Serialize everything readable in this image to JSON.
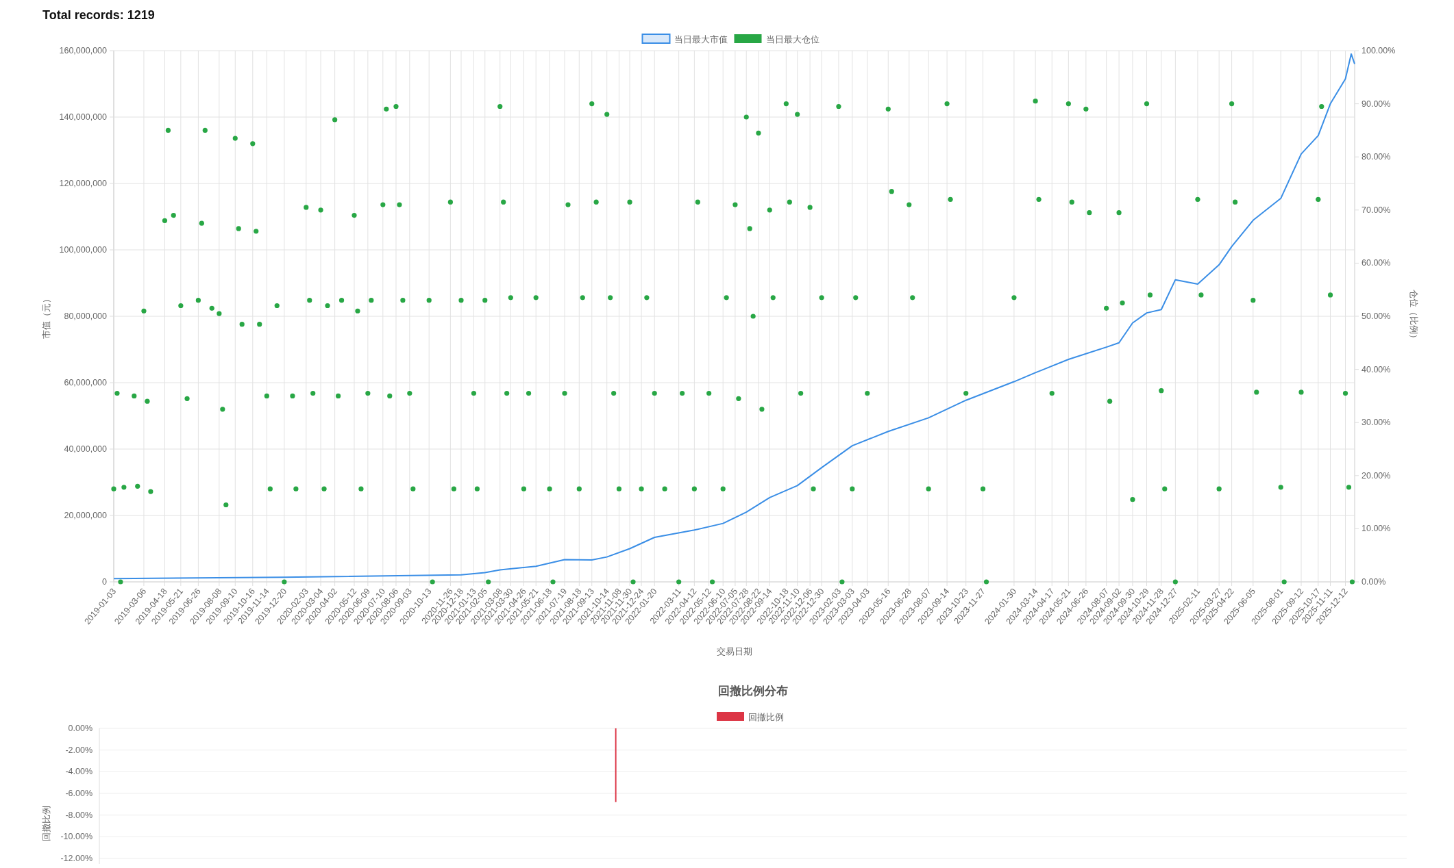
{
  "chart_data": [
    {
      "type": "line",
      "title": "Total records: 1219",
      "xlabel": "交易日期",
      "ylabel": "市值（元）",
      "y2label": "仓位（比例）",
      "legend": "top",
      "grid": true,
      "xlim": [
        "2019-01-03",
        "2025-12-31"
      ],
      "xticks": [
        "2019-01-03",
        "2019-03-06",
        "2019-04-18",
        "2019-05-21",
        "2019-06-26",
        "2019-08-08",
        "2019-09-10",
        "2019-10-16",
        "2019-11-14",
        "2019-12-20",
        "2020-02-03",
        "2020-03-04",
        "2020-04-02",
        "2020-05-12",
        "2020-06-09",
        "2020-07-10",
        "2020-08-06",
        "2020-09-03",
        "2020-10-13",
        "2020-11-26",
        "2020-12-18",
        "2021-01-13",
        "2021-02-05",
        "2021-03-08",
        "2021-03-30",
        "2021-04-26",
        "2021-05-21",
        "2021-06-18",
        "2021-07-19",
        "2021-08-18",
        "2021-09-13",
        "2021-10-14",
        "2021-11-08",
        "2021-11-30",
        "2021-12-24",
        "2022-01-20",
        "2022-03-11",
        "2022-04-12",
        "2022-05-12",
        "2022-06-10",
        "2022-07-05",
        "2022-07-28",
        "2022-08-22",
        "2022-09-14",
        "2022-10-18",
        "2022-11-10",
        "2022-12-06",
        "2022-12-30",
        "2023-02-03",
        "2023-03-03",
        "2023-04-03",
        "2023-05-16",
        "2023-06-28",
        "2023-08-07",
        "2023-09-14",
        "2023-10-23",
        "2023-11-27",
        "2024-01-30",
        "2024-03-14",
        "2024-04-17",
        "2024-05-21",
        "2024-06-26",
        "2024-08-07",
        "2024-09-02",
        "2024-09-30",
        "2024-10-29",
        "2024-11-28",
        "2024-12-27",
        "2025-02-11",
        "2025-03-27",
        "2025-04-22",
        "2025-06-05",
        "2025-08-01",
        "2025-09-12",
        "2025-10-17",
        "2025-11-11",
        "2025-12-12"
      ],
      "ylim": [
        0,
        160000000
      ],
      "yticks": [
        {
          "value": 0,
          "label": "0"
        },
        {
          "value": 20000000,
          "label": "20,000,000"
        },
        {
          "value": 40000000,
          "label": "40,000,000"
        },
        {
          "value": 60000000,
          "label": "60,000,000"
        },
        {
          "value": 80000000,
          "label": "80,000,000"
        },
        {
          "value": 100000000,
          "label": "100,000,000"
        },
        {
          "value": 120000000,
          "label": "120,000,000"
        },
        {
          "value": 140000000,
          "label": "140,000,000"
        },
        {
          "value": 160000000,
          "label": "160,000,000"
        }
      ],
      "y2lim": [
        0,
        100
      ],
      "y2ticks": [
        {
          "value": 0,
          "label": "0.00%"
        },
        {
          "value": 10,
          "label": "10.00%"
        },
        {
          "value": 20,
          "label": "20.00%"
        },
        {
          "value": 30,
          "label": "30.00%"
        },
        {
          "value": 40,
          "label": "40.00%"
        },
        {
          "value": 50,
          "label": "50.00%"
        },
        {
          "value": 60,
          "label": "60.00%"
        },
        {
          "value": 70,
          "label": "70.00%"
        },
        {
          "value": 80,
          "label": "80.00%"
        },
        {
          "value": 90,
          "label": "90.00%"
        },
        {
          "value": 100,
          "label": "100.00%"
        }
      ],
      "series": [
        {
          "name": "当日最大市值",
          "type": "line",
          "color": "#3a8ee6",
          "marker": "none",
          "x": [
            "2019-01-03",
            "2019-12-20",
            "2020-12-18",
            "2021-02-05",
            "2021-03-08",
            "2021-05-21",
            "2021-07-19",
            "2021-09-13",
            "2021-10-14",
            "2021-11-30",
            "2022-01-20",
            "2022-04-12",
            "2022-06-10",
            "2022-07-28",
            "2022-09-14",
            "2022-11-10",
            "2022-12-30",
            "2023-03-03",
            "2023-05-16",
            "2023-08-07",
            "2023-10-23",
            "2024-01-30",
            "2024-03-14",
            "2024-05-21",
            "2024-08-07",
            "2024-09-02",
            "2024-09-30",
            "2024-10-29",
            "2024-11-28",
            "2024-12-27",
            "2025-02-11",
            "2025-03-27",
            "2025-04-22",
            "2025-06-05",
            "2025-08-01",
            "2025-09-12",
            "2025-10-17",
            "2025-11-11",
            "2025-12-12",
            "2025-12-24",
            "2025-12-31"
          ],
          "values": [
            1000000,
            1400000,
            2100000,
            2800000,
            3600000,
            4700000,
            6700000,
            6600000,
            7500000,
            10000000,
            13400000,
            15600000,
            17600000,
            21000000,
            25400000,
            29000000,
            34400000,
            41000000,
            45300000,
            49400000,
            54700000,
            60300000,
            63000000,
            67000000,
            70700000,
            72000000,
            78000000,
            81000000,
            82000000,
            91000000,
            89700000,
            95500000,
            101000000,
            108900000,
            115500000,
            128900000,
            134400000,
            144000000,
            151500000,
            159000000,
            156000000
          ]
        },
        {
          "name": "当日最大仓位",
          "type": "scatter",
          "axis": "y2",
          "color": "#28a745",
          "marker": "circle",
          "x": [
            "2019-01-03",
            "2019-01-10",
            "2019-01-17",
            "2019-01-24",
            "2019-02-14",
            "2019-02-21",
            "2019-03-06",
            "2019-03-13",
            "2019-03-20",
            "2019-04-18",
            "2019-04-25",
            "2019-05-06",
            "2019-05-21",
            "2019-06-03",
            "2019-06-26",
            "2019-07-03",
            "2019-07-10",
            "2019-07-24",
            "2019-08-08",
            "2019-08-15",
            "2019-08-22",
            "2019-09-10",
            "2019-09-17",
            "2019-09-24",
            "2019-10-16",
            "2019-10-23",
            "2019-10-30",
            "2019-11-14",
            "2019-11-21",
            "2019-12-05",
            "2019-12-20",
            "2020-01-06",
            "2020-01-13",
            "2020-02-03",
            "2020-02-10",
            "2020-02-17",
            "2020-03-04",
            "2020-03-11",
            "2020-03-18",
            "2020-04-02",
            "2020-04-09",
            "2020-04-16",
            "2020-05-12",
            "2020-05-19",
            "2020-05-26",
            "2020-06-09",
            "2020-06-16",
            "2020-07-10",
            "2020-07-17",
            "2020-07-24",
            "2020-08-06",
            "2020-08-13",
            "2020-08-20",
            "2020-09-03",
            "2020-09-10",
            "2020-10-13",
            "2020-10-20",
            "2020-11-26",
            "2020-12-03",
            "2020-12-18",
            "2021-01-13",
            "2021-01-20",
            "2021-02-05",
            "2021-02-12",
            "2021-03-08",
            "2021-03-15",
            "2021-03-22",
            "2021-03-30",
            "2021-04-26",
            "2021-05-06",
            "2021-05-21",
            "2021-06-18",
            "2021-06-25",
            "2021-07-19",
            "2021-07-26",
            "2021-08-18",
            "2021-08-25",
            "2021-09-13",
            "2021-09-22",
            "2021-10-14",
            "2021-10-21",
            "2021-10-28",
            "2021-11-08",
            "2021-11-30",
            "2021-12-07",
            "2021-12-24",
            "2022-01-04",
            "2022-01-20",
            "2022-02-10",
            "2022-03-11",
            "2022-03-18",
            "2022-04-12",
            "2022-04-19",
            "2022-05-12",
            "2022-05-19",
            "2022-06-10",
            "2022-06-17",
            "2022-07-05",
            "2022-07-12",
            "2022-07-28",
            "2022-08-04",
            "2022-08-11",
            "2022-08-22",
            "2022-08-29",
            "2022-09-14",
            "2022-09-21",
            "2022-10-18",
            "2022-10-25",
            "2022-11-10",
            "2022-11-17",
            "2022-12-06",
            "2022-12-13",
            "2022-12-30",
            "2023-02-03",
            "2023-02-10",
            "2023-03-03",
            "2023-03-10",
            "2023-04-03",
            "2023-05-16",
            "2023-05-23",
            "2023-06-28",
            "2023-07-05",
            "2023-08-07",
            "2023-09-14",
            "2023-09-21",
            "2023-10-23",
            "2023-11-27",
            "2023-12-04",
            "2024-01-30",
            "2024-03-14",
            "2024-03-21",
            "2024-04-17",
            "2024-05-21",
            "2024-05-28",
            "2024-06-26",
            "2024-07-03",
            "2024-08-07",
            "2024-08-14",
            "2024-09-02",
            "2024-09-09",
            "2024-09-30",
            "2024-10-29",
            "2024-11-05",
            "2024-11-28",
            "2024-12-05",
            "2024-12-27",
            "2025-02-11",
            "2025-02-18",
            "2025-03-27",
            "2025-04-22",
            "2025-04-29",
            "2025-06-05",
            "2025-06-12",
            "2025-08-01",
            "2025-08-08",
            "2025-09-12",
            "2025-10-17",
            "2025-10-24",
            "2025-11-11",
            "2025-12-12",
            "2025-12-19",
            "2025-12-26"
          ],
          "values": [
            17.5,
            35.5,
            0,
            17.8,
            35,
            18,
            51,
            34,
            17,
            68,
            85,
            69,
            52,
            34.5,
            53,
            67.5,
            85,
            51.5,
            50.5,
            32.5,
            14.5,
            83.5,
            66.5,
            48.5,
            82.5,
            66,
            48.5,
            35,
            17.5,
            52,
            0,
            35,
            17.5,
            70.5,
            53,
            35.5,
            70,
            17.5,
            52,
            87,
            35,
            53,
            69,
            51,
            17.5,
            35.5,
            53,
            71,
            89,
            35,
            89.5,
            71,
            53,
            35.5,
            17.5,
            53,
            0,
            71.5,
            17.5,
            53,
            35.5,
            17.5,
            53,
            0,
            89.5,
            71.5,
            35.5,
            53.5,
            17.5,
            35.5,
            53.5,
            17.5,
            0,
            35.5,
            71,
            17.5,
            53.5,
            90,
            71.5,
            88,
            53.5,
            35.5,
            17.5,
            71.5,
            0,
            17.5,
            53.5,
            35.5,
            17.5,
            0,
            35.5,
            17.5,
            71.5,
            35.5,
            0,
            17.5,
            53.5,
            71,
            34.5,
            87.5,
            66.5,
            50,
            84.5,
            32.5,
            70,
            53.5,
            90,
            71.5,
            88,
            35.5,
            70.5,
            17.5,
            53.5,
            89.5,
            0,
            17.5,
            53.5,
            35.5,
            89,
            73.5,
            71,
            53.5,
            17.5,
            90,
            72,
            35.5,
            17.5,
            0,
            53.5,
            90.5,
            72,
            35.5,
            90,
            71.5,
            89,
            69.5,
            51.5,
            34,
            69.5,
            52.5,
            15.5,
            90,
            54,
            36,
            17.5,
            0,
            72,
            54,
            17.5,
            90,
            71.5,
            53,
            35.7,
            17.8,
            0,
            35.7,
            72,
            89.5,
            54,
            35.5,
            17.8,
            0
          ]
        }
      ]
    },
    {
      "type": "bar",
      "title": "回撤比例分布",
      "ylabel": "回撤比例",
      "legend": "top",
      "grid": "y",
      "categories": [
        null,
        null,
        null,
        null,
        null,
        null,
        null,
        null,
        null,
        null,
        null,
        null,
        null,
        null,
        null,
        null,
        null,
        null,
        null,
        null,
        null,
        null,
        null,
        null,
        null,
        null,
        null,
        null,
        null,
        null,
        null,
        null,
        null,
        null,
        null,
        null,
        null,
        null,
        null,
        null,
        null,
        null,
        null,
        null,
        null,
        null,
        null,
        null,
        null,
        null,
        null,
        null,
        null,
        null,
        null,
        null,
        null,
        null,
        null,
        null,
        null,
        null,
        null,
        null,
        null,
        null,
        null,
        null,
        null,
        null,
        null,
        null,
        null,
        null,
        null,
        null,
        null,
        null,
        null,
        null,
        null,
        null,
        null,
        null,
        null,
        null,
        null,
        null,
        null,
        null,
        null,
        null,
        null,
        null,
        null,
        null,
        null,
        null,
        null,
        null
      ],
      "ylim": [
        -12.5,
        0
      ],
      "yticks": [
        {
          "value": 0,
          "label": "0.00%"
        },
        {
          "value": -2,
          "label": "-2.00%"
        },
        {
          "value": -4,
          "label": "-4.00%"
        },
        {
          "value": -6,
          "label": "-6.00%"
        },
        {
          "value": -8,
          "label": "-8.00%"
        },
        {
          "value": -10,
          "label": "-10.00%"
        },
        {
          "value": -12,
          "label": "-12.00%"
        }
      ],
      "series": [
        {
          "name": "回撤比例",
          "color": "#dc3545",
          "values": [
            0,
            0,
            0,
            0,
            0,
            0,
            0,
            0,
            0,
            0,
            0,
            0,
            0,
            0,
            0,
            0,
            0,
            0,
            0,
            0,
            0,
            0,
            0,
            0,
            0,
            0,
            0,
            0,
            0,
            0,
            0,
            0,
            0,
            0,
            0,
            0,
            0,
            0,
            0,
            -6.8,
            0,
            0,
            0,
            0,
            0,
            0,
            0,
            0,
            0,
            0,
            0,
            0,
            0,
            0,
            0,
            0,
            0,
            0,
            0,
            0,
            0,
            0,
            0,
            0,
            0,
            0,
            0,
            0,
            0,
            0,
            0,
            0,
            0,
            0,
            0,
            0,
            0,
            0,
            0,
            0,
            0,
            0,
            0,
            0,
            0,
            0,
            0,
            0,
            0,
            0,
            0,
            0,
            0,
            0,
            0,
            0,
            0,
            0,
            0,
            0
          ]
        }
      ]
    }
  ]
}
